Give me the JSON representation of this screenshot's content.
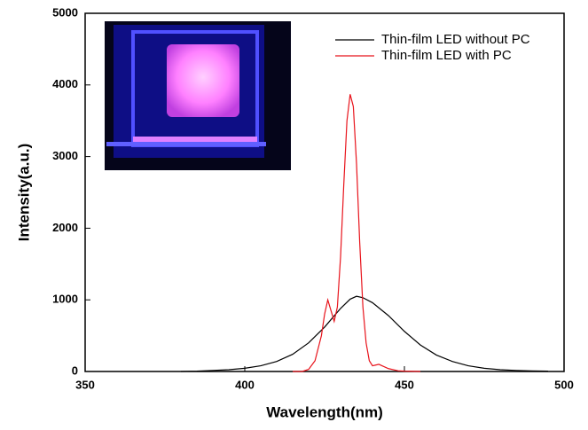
{
  "chart_data": {
    "type": "line",
    "xlabel": "Wavelength(nm)",
    "ylabel": "Intensity(a.u.)",
    "xlim": [
      350,
      500
    ],
    "xticks": [
      350,
      400,
      450,
      500
    ],
    "ylim": [
      0,
      5000
    ],
    "yticks": [
      0,
      1000,
      2000,
      3000,
      4000,
      5000
    ],
    "legend": "upper right",
    "series": [
      {
        "name": "Thin-film LED without PC",
        "color": "#000000",
        "x": [
          380,
          385,
          390,
          395,
          400,
          405,
          410,
          415,
          420,
          425,
          430,
          433,
          435,
          437,
          440,
          445,
          450,
          455,
          460,
          465,
          470,
          475,
          480,
          485,
          490,
          495
        ],
        "values": [
          0,
          5,
          15,
          25,
          45,
          80,
          140,
          240,
          400,
          620,
          880,
          1010,
          1050,
          1030,
          960,
          780,
          560,
          370,
          230,
          140,
          80,
          45,
          25,
          15,
          8,
          5
        ]
      },
      {
        "name": "Thin-film LED with PC",
        "color": "#e8141c",
        "x": [
          415,
          418,
          420,
          422,
          424,
          425,
          426,
          427,
          428,
          429,
          430,
          431,
          432,
          433,
          434,
          435,
          436,
          437,
          438,
          439,
          440,
          441,
          442,
          443,
          445,
          448,
          450,
          455
        ],
        "values": [
          0,
          0,
          30,
          150,
          500,
          800,
          1000,
          850,
          700,
          900,
          1600,
          2600,
          3500,
          3870,
          3700,
          2900,
          1800,
          900,
          400,
          150,
          80,
          90,
          100,
          80,
          40,
          10,
          5,
          0
        ]
      }
    ]
  }
}
